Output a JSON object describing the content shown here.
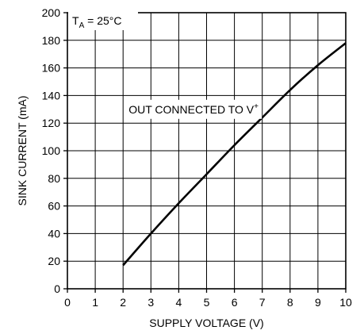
{
  "chart_data": {
    "type": "line",
    "title": "",
    "xlabel": "SUPPLY VOLTAGE (V)",
    "ylabel": "SINK CURRENT (mA)",
    "xlim": [
      0,
      10
    ],
    "ylim": [
      0,
      200
    ],
    "x_ticks": [
      0,
      1,
      2,
      3,
      4,
      5,
      6,
      7,
      8,
      9,
      10
    ],
    "y_ticks": [
      0,
      20,
      40,
      60,
      80,
      100,
      120,
      140,
      160,
      180,
      200
    ],
    "grid": true,
    "series": [
      {
        "x": [
          2,
          3,
          4,
          5,
          6,
          7,
          8,
          9,
          10
        ],
        "y": [
          17,
          40,
          62,
          83,
          104,
          124,
          144,
          162,
          178
        ]
      }
    ],
    "annotations": {
      "condition": {
        "main": "T",
        "sub": "A",
        "rest": " = 25°C"
      },
      "curve_label": {
        "main": "OUT CONNECTED TO V",
        "sup": "+",
        "x": 2.2,
        "y": 130
      }
    }
  }
}
